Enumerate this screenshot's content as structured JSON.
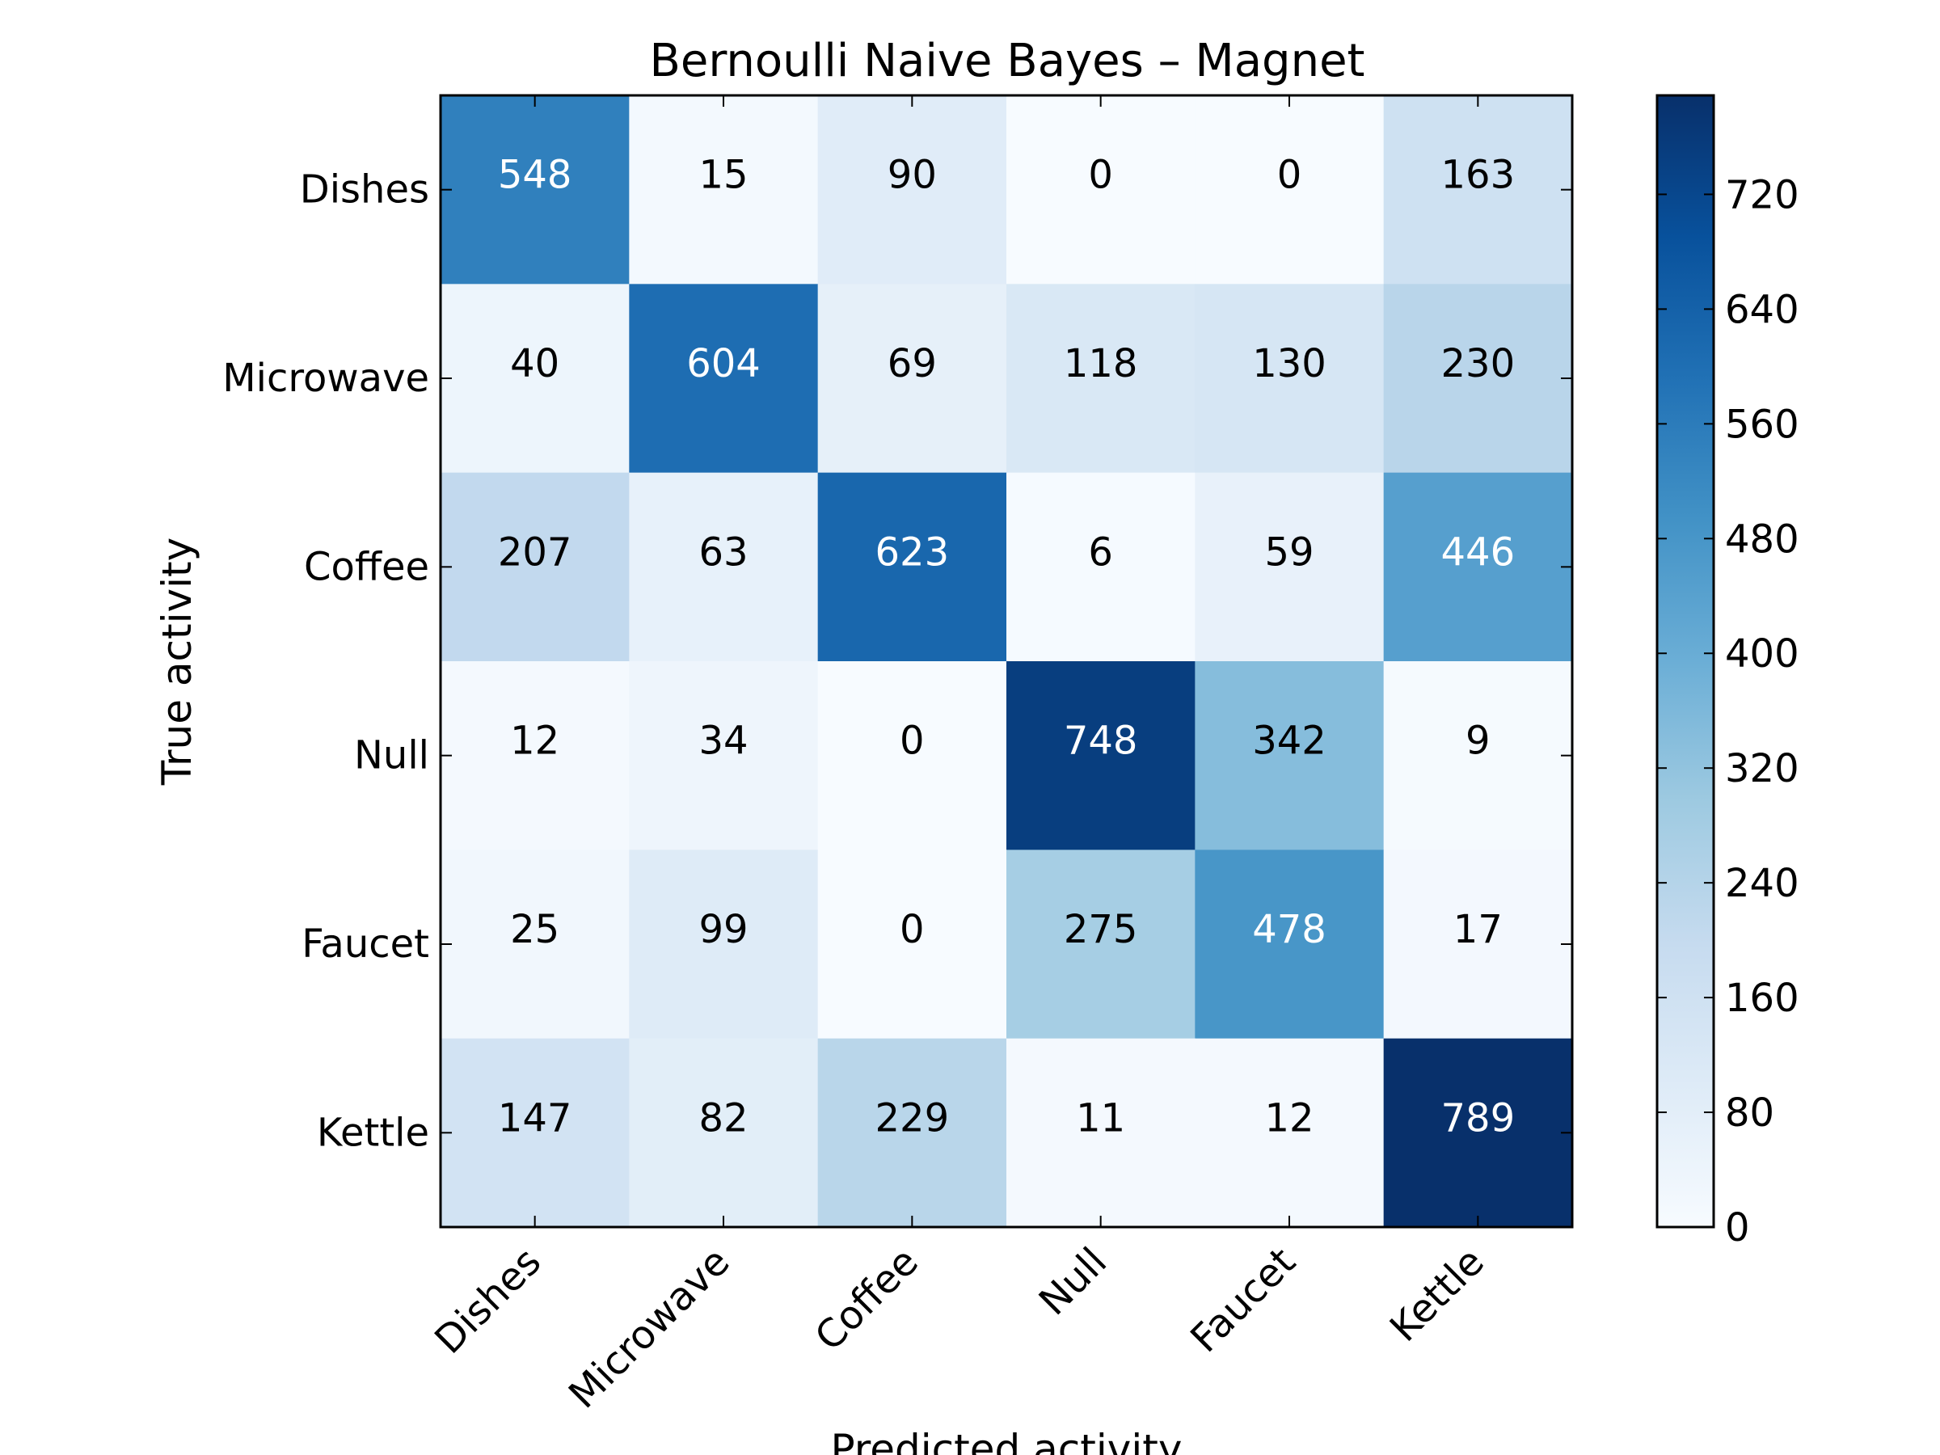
{
  "chart_data": {
    "type": "heatmap",
    "title": "Bernoulli Naive Bayes – Magnet",
    "xlabel": "Predicted activity",
    "ylabel": "True activity",
    "x_categories": [
      "Dishes",
      "Microwave",
      "Coffee",
      "Null",
      "Faucet",
      "Kettle"
    ],
    "y_categories": [
      "Dishes",
      "Microwave",
      "Coffee",
      "Null",
      "Faucet",
      "Kettle"
    ],
    "values": [
      [
        548,
        15,
        90,
        0,
        0,
        163
      ],
      [
        40,
        604,
        69,
        118,
        130,
        230
      ],
      [
        207,
        63,
        623,
        6,
        59,
        446
      ],
      [
        12,
        34,
        0,
        748,
        342,
        9
      ],
      [
        25,
        99,
        0,
        275,
        478,
        17
      ],
      [
        147,
        82,
        229,
        11,
        12,
        789
      ]
    ],
    "colorbar": {
      "range": [
        0,
        789
      ],
      "ticks": [
        0,
        80,
        160,
        240,
        320,
        400,
        480,
        560,
        640,
        720
      ],
      "colormap": "Blues",
      "colormap_stops": [
        "#f7fbff",
        "#deebf7",
        "#c6dbef",
        "#9ecae1",
        "#6baed6",
        "#4292c6",
        "#2171b5",
        "#08519c",
        "#08306b"
      ]
    },
    "grid": false,
    "legend": "none"
  }
}
